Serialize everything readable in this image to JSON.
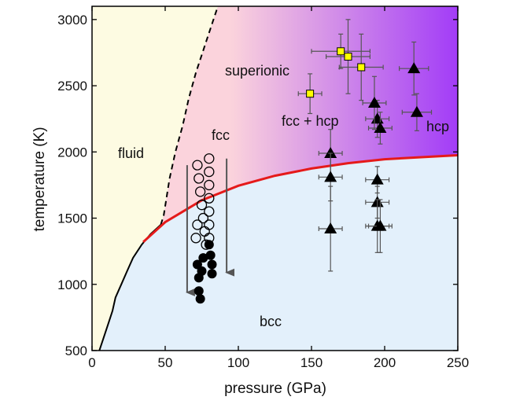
{
  "chart_data": {
    "type": "scatter",
    "title": "",
    "xlabel": "pressure (GPa)",
    "ylabel": "temperature (K)",
    "xlim": [
      0,
      250
    ],
    "ylim": [
      500,
      3100
    ],
    "xticks": [
      "0",
      "50",
      "100",
      "150",
      "200",
      "250"
    ],
    "yticks": [
      "500",
      "1000",
      "1500",
      "2000",
      "2500",
      "3000"
    ],
    "grid": false,
    "legend": "none",
    "colors": {
      "fluid": "#fdfbe2",
      "bcc": "#e3f0fb",
      "superionic": "#fbd3dc",
      "hcp": "#a23cf7",
      "boundary_red": "#e51a1a",
      "square_fill": "#ffff00",
      "arrow": "#555555"
    },
    "region_labels": {
      "fluid": "fluid",
      "superionic": "superionic",
      "fcc": "fcc",
      "fcc_hcp": "fcc + hcp",
      "hcp": "hcp",
      "bcc": "bcc"
    },
    "boundaries": {
      "melting_solid": [
        [
          5,
          500
        ],
        [
          8,
          600
        ],
        [
          11,
          700
        ],
        [
          14,
          800
        ],
        [
          16,
          900
        ],
        [
          20,
          1000
        ],
        [
          24,
          1100
        ],
        [
          28,
          1200
        ],
        [
          34,
          1300
        ],
        [
          40,
          1380
        ],
        [
          47,
          1450
        ]
      ],
      "melting_dashed": [
        [
          47,
          1450
        ],
        [
          49,
          1520
        ],
        [
          53,
          1800
        ],
        [
          57,
          2000
        ],
        [
          62,
          2200
        ],
        [
          66,
          2400
        ],
        [
          71,
          2600
        ],
        [
          80,
          2900
        ],
        [
          86,
          3100
        ]
      ],
      "bcc_upper_red": [
        [
          35,
          1320
        ],
        [
          50,
          1470
        ],
        [
          75,
          1635
        ],
        [
          100,
          1745
        ],
        [
          125,
          1820
        ],
        [
          150,
          1875
        ],
        [
          175,
          1915
        ],
        [
          200,
          1945
        ],
        [
          225,
          1960
        ],
        [
          250,
          1975
        ]
      ]
    },
    "series": [
      {
        "marker": "open-circle",
        "points": [
          [
            72,
            1900
          ],
          [
            73,
            1800
          ],
          [
            74,
            1700
          ],
          [
            75,
            1600
          ],
          [
            76,
            1500
          ],
          [
            77,
            1400
          ],
          [
            78,
            1300
          ],
          [
            80,
            1950
          ],
          [
            80,
            1850
          ],
          [
            80,
            1750
          ],
          [
            80,
            1650
          ],
          [
            80,
            1550
          ],
          [
            80,
            1450
          ],
          [
            80,
            1350
          ],
          [
            72,
            1450
          ],
          [
            71,
            1350
          ]
        ]
      },
      {
        "marker": "filled-circle",
        "points": [
          [
            72,
            1150
          ],
          [
            73,
            1050
          ],
          [
            73,
            950
          ],
          [
            74,
            890
          ],
          [
            75,
            1100
          ],
          [
            76,
            1200
          ],
          [
            80,
            1300
          ],
          [
            81,
            1220
          ],
          [
            82,
            1150
          ],
          [
            82,
            1080
          ]
        ]
      },
      {
        "marker": "filled-triangle",
        "points": [
          {
            "x": 163,
            "y": 1990,
            "xerr": 8,
            "yerr": 180
          },
          {
            "x": 163,
            "y": 1810,
            "xerr": 8,
            "yerr": 180
          },
          {
            "x": 163,
            "y": 1420,
            "xerr": 8,
            "yerr": 320
          },
          {
            "x": 195,
            "y": 1790,
            "xerr": 8,
            "yerr": 100
          },
          {
            "x": 195,
            "y": 1620,
            "xerr": 8,
            "yerr": 120
          },
          {
            "x": 195,
            "y": 1440,
            "xerr": 8,
            "yerr": 200
          },
          {
            "x": 197,
            "y": 1440,
            "xerr": 8,
            "yerr": 200
          },
          {
            "x": 195,
            "y": 2250,
            "xerr": 8,
            "yerr": 140
          },
          {
            "x": 197,
            "y": 2180,
            "xerr": 8,
            "yerr": 120
          },
          {
            "x": 193,
            "y": 2370,
            "xerr": 8,
            "yerr": 200
          },
          {
            "x": 220,
            "y": 2630,
            "xerr": 10,
            "yerr": 200
          },
          {
            "x": 222,
            "y": 2300,
            "xerr": 10,
            "yerr": 140
          }
        ]
      },
      {
        "marker": "yellow-square",
        "points": [
          {
            "x": 149,
            "y": 2440,
            "xerr": 8,
            "yerr": 150
          },
          {
            "x": 170,
            "y": 2760,
            "xerr": 20,
            "yerr": 130
          },
          {
            "x": 175,
            "y": 2720,
            "xerr": 15,
            "yerr": 280
          },
          {
            "x": 184,
            "y": 2640,
            "xerr": 15,
            "yerr": 250
          }
        ]
      }
    ],
    "arrows": [
      {
        "from": [
          65,
          1900
        ],
        "to": [
          65,
          880
        ]
      },
      {
        "from": [
          92,
          1950
        ],
        "to": [
          92,
          1030
        ]
      }
    ]
  }
}
